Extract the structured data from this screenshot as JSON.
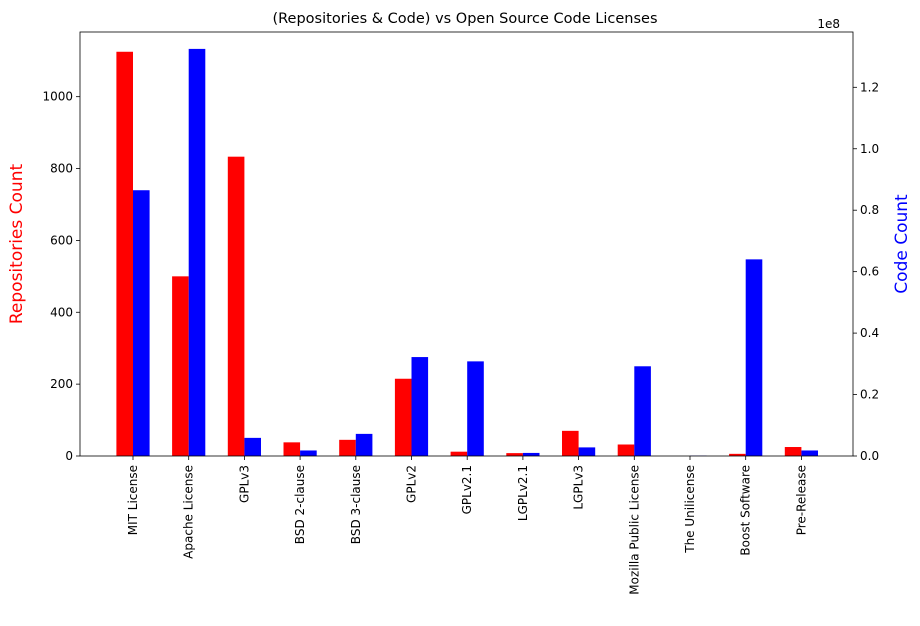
{
  "chart_data": {
    "type": "bar",
    "title": "(Repositories & Code) vs Open Source Code Licenses",
    "ylabel_left": "Repositories Count",
    "ylabel_right": "Code Count",
    "right_axis_offset_label": "1e8",
    "categories": [
      "MIT License",
      "Apache License",
      "GPLv3",
      "BSD 2-clause",
      "BSD 3-clause",
      "GPLv2",
      "GPLv2.1",
      "LGPLv2.1",
      "LGPLv3",
      "Mozilla Public License",
      "The Unilicense",
      "Boost Software",
      "Pre-Release"
    ],
    "series": [
      {
        "name": "Repositories Count",
        "axis": "left",
        "color": "#ff0000",
        "values": [
          1125,
          500,
          833,
          38,
          45,
          215,
          12,
          8,
          70,
          32,
          0,
          6,
          25
        ]
      },
      {
        "name": "Code Count",
        "axis": "right",
        "color": "#0000ff",
        "values": [
          86500000,
          132500000,
          5900000,
          1800000,
          7200000,
          32200000,
          30800000,
          1000000,
          2800000,
          29200000,
          100000,
          64000000,
          1800000
        ]
      }
    ],
    "ylim_left": [
      0,
      1180
    ],
    "ylim_right": [
      0,
      138000000
    ],
    "yticks_left": [
      0,
      200,
      400,
      600,
      800,
      1000
    ],
    "yticks_right": [
      "0.0",
      "0.2",
      "0.4",
      "0.6",
      "0.8",
      "1.0",
      "1.2"
    ],
    "grid": false,
    "legend": "none"
  }
}
